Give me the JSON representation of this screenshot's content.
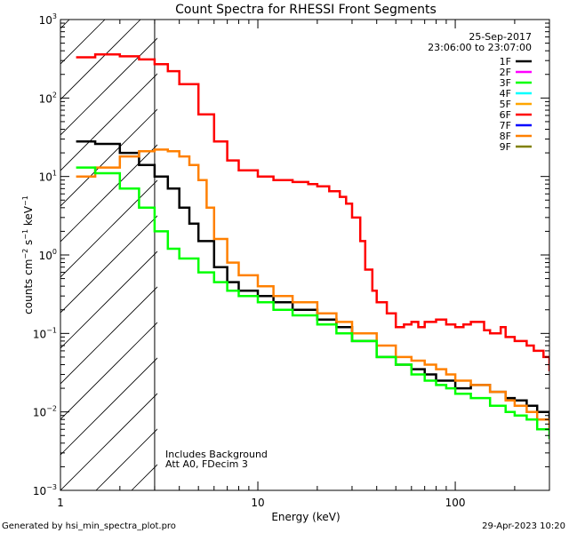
{
  "chart_data": {
    "type": "line",
    "title": "Count Spectra for RHESSI Front Segments",
    "xlabel": "Energy (keV)",
    "ylabel_parts": [
      "counts cm",
      "−2",
      " s",
      "−1",
      " keV",
      "−1"
    ],
    "x_scale": "log",
    "y_scale": "log",
    "xlim": [
      1,
      300
    ],
    "ylim": [
      0.001,
      1000
    ],
    "x_ticks": [
      {
        "value": 1,
        "label": "1"
      },
      {
        "value": 10,
        "label": "10"
      },
      {
        "value": 100,
        "label": "100"
      }
    ],
    "y_ticks": [
      {
        "value": 0.001,
        "base": "10",
        "exp": "−3"
      },
      {
        "value": 0.01,
        "base": "10",
        "exp": "−2"
      },
      {
        "value": 0.1,
        "base": "10",
        "exp": "−1"
      },
      {
        "value": 1,
        "base": "10",
        "exp": "0"
      },
      {
        "value": 10,
        "base": "10",
        "exp": "1"
      },
      {
        "value": 100,
        "base": "10",
        "exp": "2"
      },
      {
        "value": 1000,
        "base": "10",
        "exp": "3"
      }
    ],
    "date": "25-Sep-2017",
    "time_range": "23:06:00 to 23:07:00",
    "annotations": [
      "Includes Background",
      "Att A0, FDecim 3"
    ],
    "threshold_energy": 3,
    "shaded_region": [
      1,
      3
    ],
    "legend": [
      {
        "name": "1F",
        "color": "#000000"
      },
      {
        "name": "2F",
        "color": "#ff00ff"
      },
      {
        "name": "3F",
        "color": "#00ff00"
      },
      {
        "name": "4F",
        "color": "#00ffff"
      },
      {
        "name": "5F",
        "color": "#ffa500"
      },
      {
        "name": "6F",
        "color": "#ff0000"
      },
      {
        "name": "7F",
        "color": "#0000ff"
      },
      {
        "name": "8F",
        "color": "#ff8000"
      },
      {
        "name": "9F",
        "color": "#808000"
      }
    ],
    "series": [
      {
        "name": "6F",
        "color": "#ff0000",
        "x": [
          1.2,
          1.5,
          2,
          2.5,
          3,
          3.5,
          4,
          5,
          6,
          7,
          8,
          10,
          12,
          15,
          18,
          20,
          23,
          26,
          28,
          30,
          33,
          35,
          38,
          40,
          45,
          50,
          55,
          60,
          65,
          70,
          80,
          90,
          100,
          110,
          120,
          140,
          150,
          170,
          180,
          200,
          230,
          250,
          280,
          300
        ],
        "y": [
          330,
          360,
          340,
          310,
          270,
          220,
          150,
          62,
          28,
          16,
          12,
          10,
          9,
          8.5,
          8,
          7.5,
          6.5,
          5.5,
          4.5,
          3,
          1.5,
          0.65,
          0.35,
          0.25,
          0.18,
          0.12,
          0.13,
          0.14,
          0.12,
          0.14,
          0.15,
          0.13,
          0.12,
          0.13,
          0.14,
          0.11,
          0.1,
          0.12,
          0.09,
          0.08,
          0.07,
          0.06,
          0.05,
          0.033
        ]
      },
      {
        "name": "1F",
        "color": "#000000",
        "x": [
          1.2,
          1.5,
          2,
          2.5,
          3,
          3.5,
          4,
          4.5,
          5,
          6,
          7,
          8,
          10,
          12,
          15,
          20,
          25,
          30,
          40,
          50,
          60,
          70,
          80,
          90,
          100,
          120,
          150,
          180,
          200,
          230,
          260,
          300
        ],
        "y": [
          28,
          26,
          20,
          14,
          10,
          7,
          4,
          2.5,
          1.5,
          0.7,
          0.45,
          0.35,
          0.3,
          0.25,
          0.2,
          0.15,
          0.12,
          0.08,
          0.05,
          0.04,
          0.035,
          0.03,
          0.025,
          0.025,
          0.02,
          0.022,
          0.018,
          0.015,
          0.014,
          0.012,
          0.01,
          0.008
        ]
      },
      {
        "name": "8F",
        "color": "#ff8000",
        "x": [
          1.2,
          1.5,
          2,
          2.5,
          3,
          3.5,
          4,
          4.5,
          5,
          5.5,
          6,
          7,
          8,
          10,
          12,
          15,
          20,
          25,
          30,
          40,
          50,
          60,
          70,
          80,
          90,
          100,
          120,
          150,
          180,
          200,
          230,
          260,
          300
        ],
        "y": [
          10,
          13,
          18,
          21,
          22,
          21,
          18,
          14,
          9,
          4,
          1.6,
          0.8,
          0.55,
          0.4,
          0.3,
          0.25,
          0.18,
          0.14,
          0.1,
          0.07,
          0.05,
          0.045,
          0.04,
          0.035,
          0.03,
          0.025,
          0.022,
          0.018,
          0.014,
          0.012,
          0.01,
          0.008,
          0.006
        ]
      },
      {
        "name": "3F",
        "color": "#00ff00",
        "x": [
          1.2,
          1.5,
          2,
          2.5,
          3,
          3.5,
          4,
          5,
          6,
          7,
          8,
          10,
          12,
          15,
          20,
          25,
          30,
          40,
          50,
          60,
          70,
          80,
          90,
          100,
          120,
          150,
          180,
          200,
          230,
          260,
          300
        ],
        "y": [
          13,
          11,
          7,
          4,
          2,
          1.2,
          0.9,
          0.6,
          0.45,
          0.35,
          0.3,
          0.25,
          0.2,
          0.17,
          0.13,
          0.1,
          0.08,
          0.05,
          0.04,
          0.03,
          0.025,
          0.022,
          0.02,
          0.017,
          0.015,
          0.012,
          0.01,
          0.009,
          0.008,
          0.006,
          0.0045
        ]
      }
    ]
  },
  "footer": {
    "generated_by": "Generated by hsi_min_spectra_plot.pro",
    "timestamp": "29-Apr-2023 10:20"
  }
}
